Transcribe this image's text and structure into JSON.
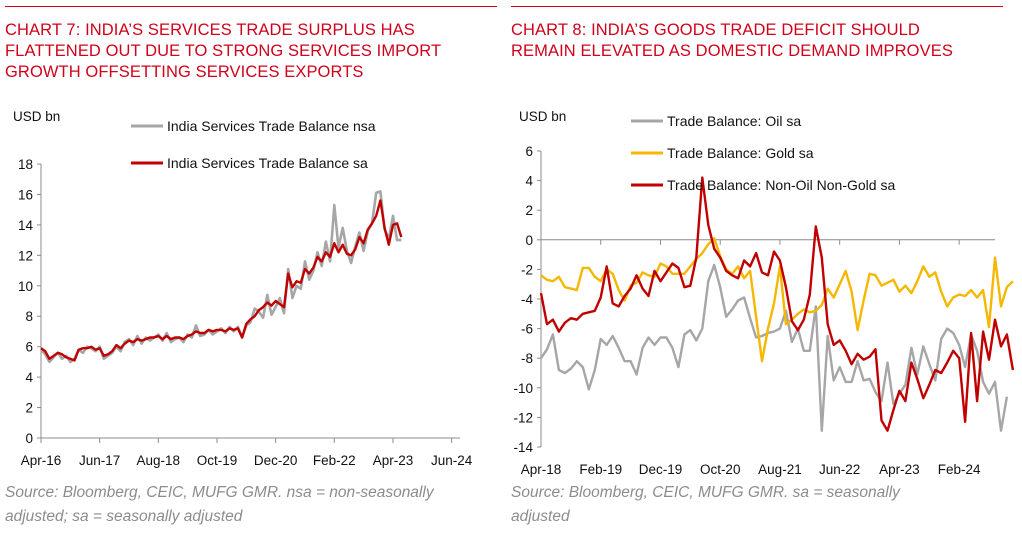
{
  "chart_data": [
    {
      "type": "line",
      "title_lines": [
        "CHART 7: INDIA’S SERVICES TRADE SURPLUS HAS",
        "FLATTENED OUT DUE TO STRONG SERVICES IMPORT",
        "GROWTH OFFSETTING SERVICES EXPORTS"
      ],
      "ylabel": "USD bn",
      "xlabel": "",
      "ylim": [
        0,
        18
      ],
      "yticks": [
        0,
        2,
        4,
        6,
        8,
        10,
        12,
        14,
        16,
        18
      ],
      "xlim": [
        "2016-04",
        "2024-08"
      ],
      "xticks": [
        "2016-04",
        "2017-06",
        "2018-08",
        "2019-10",
        "2020-12",
        "2022-02",
        "2023-04",
        "2024-06"
      ],
      "xtick_labels": [
        "Apr-16",
        "Jun-17",
        "Aug-18",
        "Oct-19",
        "Dec-20",
        "Feb-22",
        "Apr-23",
        "Jun-24"
      ],
      "grid": false,
      "legend": "top",
      "series": [
        {
          "name": "India Services Trade Balance nsa",
          "color": "#a6a6a6",
          "start": "2016-04",
          "values": [
            5.8,
            5.5,
            5.0,
            5.3,
            5.6,
            5.2,
            5.4,
            5.0,
            5.2,
            5.8,
            5.6,
            6.0,
            5.9,
            5.7,
            6.0,
            5.2,
            5.4,
            5.6,
            6.0,
            5.7,
            6.3,
            6.5,
            6.1,
            6.7,
            6.2,
            6.6,
            6.4,
            6.6,
            6.8,
            6.4,
            6.9,
            6.3,
            6.5,
            6.6,
            6.3,
            6.8,
            6.6,
            7.4,
            6.7,
            6.8,
            7.1,
            6.8,
            7.0,
            7.2,
            6.9,
            7.3,
            7.0,
            7.3,
            6.6,
            7.4,
            7.6,
            8.5,
            8.3,
            7.9,
            9.4,
            8.1,
            8.6,
            9.2,
            8.2,
            11.1,
            9.2,
            10.0,
            9.8,
            11.6,
            10.4,
            11.0,
            12.2,
            11.3,
            12.9,
            11.6,
            15.3,
            12.5,
            13.8,
            12.3,
            11.5,
            12.6,
            13.5,
            12.3,
            13.6,
            14.1,
            16.1,
            16.2,
            13.7,
            13.1,
            14.6,
            13.0,
            13.0
          ],
          "values_approximate": true
        },
        {
          "name": "India Services Trade Balance sa",
          "color": "#c00000",
          "start": "2016-04",
          "values": [
            5.9,
            5.7,
            5.2,
            5.4,
            5.6,
            5.5,
            5.3,
            5.2,
            5.1,
            5.8,
            5.9,
            5.9,
            6.0,
            5.8,
            5.9,
            5.4,
            5.5,
            5.7,
            6.1,
            5.9,
            6.2,
            6.4,
            6.3,
            6.5,
            6.4,
            6.5,
            6.6,
            6.6,
            6.7,
            6.5,
            6.7,
            6.5,
            6.6,
            6.6,
            6.5,
            6.7,
            6.8,
            7.0,
            6.9,
            6.9,
            7.1,
            7.0,
            7.1,
            7.1,
            7.0,
            7.2,
            7.1,
            7.2,
            6.6,
            7.5,
            7.8,
            8.0,
            8.4,
            8.6,
            8.9,
            8.7,
            9.0,
            8.8,
            8.6,
            10.8,
            9.9,
            10.3,
            10.2,
            11.1,
            10.8,
            11.2,
            11.9,
            11.6,
            12.2,
            11.9,
            12.8,
            12.2,
            12.7,
            12.1,
            12.0,
            12.4,
            13.2,
            12.8,
            13.7,
            14.1,
            14.6,
            15.6,
            13.8,
            12.7,
            14.0,
            14.1,
            13.2
          ],
          "values_approximate": true
        }
      ],
      "source_lines": [
        "Source: Bloomberg, CEIC, MUFG GMR.  nsa = non-seasonally",
        "adjusted; sa = seasonally adjusted"
      ]
    },
    {
      "type": "line",
      "title_lines": [
        "CHART 8: INDIA’S GOODS TRADE DEFICIT SHOULD",
        "REMAIN ELEVATED AS DOMESTIC DEMAND IMPROVES"
      ],
      "ylabel": "USD bn",
      "xlabel": "",
      "ylim": [
        -14,
        6
      ],
      "yticks": [
        -14,
        -12,
        -10,
        -8,
        -6,
        -4,
        -2,
        0,
        2,
        4,
        6
      ],
      "xlim": [
        "2018-04",
        "2024-08"
      ],
      "xticks": [
        "2018-04",
        "2019-02",
        "2019-12",
        "2020-10",
        "2021-08",
        "2022-06",
        "2023-04",
        "2024-02"
      ],
      "xtick_labels": [
        "Apr-18",
        "Feb-19",
        "Dec-19",
        "Oct-20",
        "Aug-21",
        "Jun-22",
        "Apr-23",
        "Feb-24"
      ],
      "grid": false,
      "legend": "top",
      "series": [
        {
          "name": "Trade Balance: Oil sa",
          "color": "#a6a6a6",
          "start": "2018-04",
          "values": [
            -8.0,
            -7.4,
            -6.4,
            -8.8,
            -9.0,
            -8.7,
            -8.2,
            -8.6,
            -10.1,
            -8.8,
            -6.7,
            -7.1,
            -6.5,
            -7.3,
            -8.2,
            -8.2,
            -9.1,
            -7.3,
            -6.6,
            -7.1,
            -6.6,
            -6.6,
            -7.3,
            -8.6,
            -6.4,
            -6.1,
            -6.8,
            -6.0,
            -2.8,
            -1.7,
            -3.2,
            -5.2,
            -4.7,
            -4.1,
            -3.9,
            -5.3,
            -6.6,
            -6.5,
            -6.3,
            -6.2,
            -6.0,
            -4.8,
            -6.9,
            -6.0,
            -7.5,
            -7.5,
            -4.5,
            -12.9,
            -6.5,
            -9.5,
            -8.6,
            -9.6,
            -9.6,
            -8.2,
            -9.5,
            -9.4,
            -10.3,
            -10.9,
            -8.3,
            -11.1,
            -10.4,
            -9.8,
            -7.3,
            -9.1,
            -7.2,
            -8.4,
            -9.5,
            -6.7,
            -6.0,
            -6.3,
            -7.1,
            -8.6,
            -6.4,
            -7.5,
            -9.6,
            -10.4,
            -9.6,
            -12.9,
            -10.6
          ],
          "values_approximate": true
        },
        {
          "name": "Trade Balance: Gold sa",
          "color": "#f5b700",
          "start": "2018-04",
          "values": [
            -2.4,
            -2.7,
            -2.8,
            -2.5,
            -3.2,
            -3.3,
            -3.4,
            -1.9,
            -1.9,
            -2.5,
            -2.8,
            -2.0,
            -2.3,
            -3.4,
            -4.1,
            -3.1,
            -2.9,
            -2.2,
            -2.4,
            -2.5,
            -1.6,
            -1.8,
            -2.3,
            -2.3,
            -2.3,
            -1.8,
            -1.3,
            -0.9,
            -0.3,
            0.1,
            -1.1,
            -2.0,
            -2.3,
            -1.8,
            -2.6,
            -2.1,
            -5.2,
            -8.2,
            -6.0,
            -4.3,
            -1.8,
            -5.7,
            -5.4,
            -5.0,
            -4.7,
            -4.9,
            -4.8,
            -4.4,
            -3.3,
            -3.9,
            -3.0,
            -2.1,
            -3.5,
            -6.1,
            -4.1,
            -2.3,
            -2.4,
            -3.1,
            -2.9,
            -2.7,
            -3.5,
            -3.1,
            -3.6,
            -2.8,
            -1.8,
            -2.5,
            -2.2,
            -3.5,
            -4.5,
            -3.9,
            -3.7,
            -3.8,
            -3.4,
            -3.9,
            -3.4,
            -5.9,
            -1.2,
            -4.5,
            -3.2,
            -2.8
          ],
          "values_approximate": true
        },
        {
          "name": "Trade Balance: Non-Oil Non-Gold sa",
          "color": "#c00000",
          "start": "2018-04",
          "values": [
            -3.6,
            -5.7,
            -5.4,
            -6.2,
            -5.6,
            -5.3,
            -5.4,
            -5.0,
            -4.9,
            -4.8,
            -3.9,
            -1.8,
            -4.3,
            -4.5,
            -3.8,
            -3.3,
            -2.4,
            -3.3,
            -3.8,
            -2.1,
            -2.8,
            -2.2,
            -1.6,
            -1.9,
            -3.2,
            -3.1,
            -1.2,
            4.2,
            1.0,
            -0.6,
            -1.2,
            -2.1,
            -2.4,
            -2.6,
            -1.4,
            -1.8,
            -0.9,
            -2.2,
            -2.4,
            -0.8,
            -1.4,
            -3.2,
            -5.5,
            -6.1,
            -5.4,
            -3.7,
            0.9,
            -1.2,
            -5.7,
            -7.1,
            -6.8,
            -7.5,
            -8.4,
            -7.7,
            -8.1,
            -7.9,
            -7.4,
            -12.2,
            -12.9,
            -11.5,
            -10.2,
            -10.9,
            -8.3,
            -9.4,
            -10.7,
            -9.8,
            -8.8,
            -9.0,
            -8.3,
            -7.5,
            -8.0,
            -12.3,
            -6.3,
            -10.9,
            -6.2,
            -8.1,
            -5.4,
            -7.2,
            -6.4,
            -8.8
          ],
          "values_approximate": true
        }
      ],
      "source_lines": [
        "Source: Bloomberg, CEIC, MUFG GMR.  sa = seasonally",
        "adjusted"
      ]
    }
  ]
}
